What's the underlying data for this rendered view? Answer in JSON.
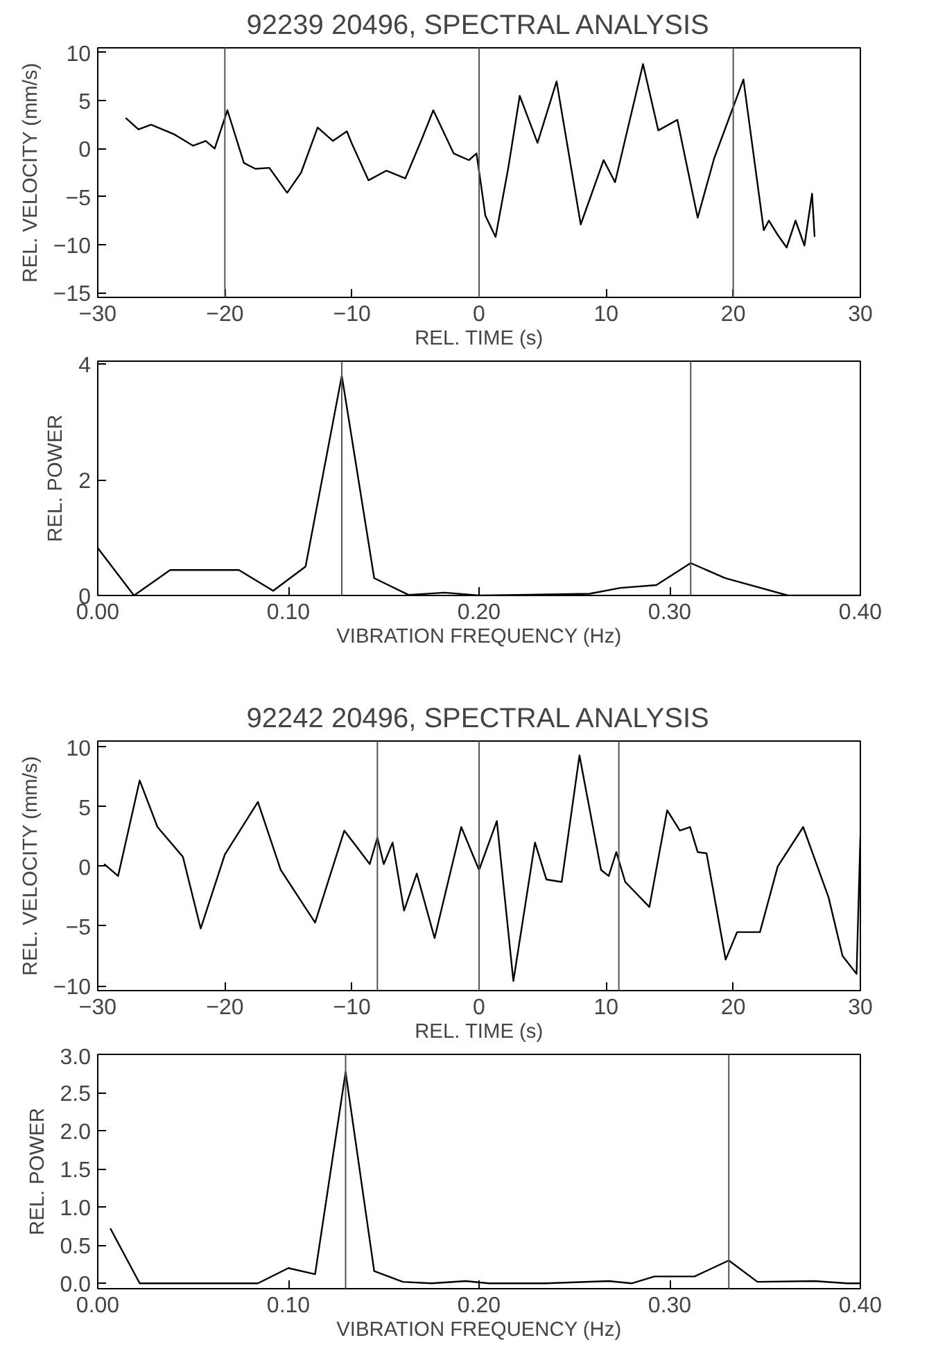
{
  "chart_data": [
    {
      "type": "line",
      "title": "92239 20496, SPECTRAL ANALYSIS",
      "xlabel": "REL. TIME (s)",
      "ylabel": "REL. VELOCITY (mm/s)",
      "grid": false,
      "xlim": [
        -30,
        30
      ],
      "ylim": [
        -15.5,
        10.5
      ],
      "xticks": [
        -30,
        -20,
        -10,
        0,
        10,
        20,
        30
      ],
      "yticks": [
        -15,
        -10,
        -5,
        0,
        5,
        10
      ],
      "ref_lines": [
        {
          "axis": "x",
          "value": -20
        },
        {
          "axis": "x",
          "value": 0
        },
        {
          "axis": "x",
          "value": 20
        }
      ],
      "series": [
        {
          "color": "#000000",
          "x": [
            -27.8,
            -26.8,
            -25.8,
            -24,
            -22.5,
            -21.5,
            -20.8,
            -19.8,
            -18.5,
            -17.6,
            -16.5,
            -15.1,
            -14,
            -12.7,
            -11.5,
            -10.4,
            -10,
            -8.7,
            -7.3,
            -5.8,
            -4.5,
            -3.6,
            -2,
            -0.8,
            -0.2,
            0.5,
            1.3,
            2.3,
            3.2,
            4.6,
            6.1,
            8,
            9.8,
            10.7,
            12.9,
            14.1,
            15.6,
            17.2,
            18.5,
            20.8,
            22.4,
            22.8,
            23.5,
            24.2,
            24.9,
            25.6,
            26.2,
            26.4
          ],
          "values": [
            3.2,
            2,
            2.5,
            1.5,
            0.3,
            0.8,
            0,
            4,
            -1.5,
            -2.1,
            -2,
            -4.6,
            -2.5,
            2.2,
            0.8,
            1.8,
            0.5,
            -3.3,
            -2.3,
            -3.1,
            1,
            4,
            -0.5,
            -1.2,
            -0.5,
            -7,
            -9.2,
            -2,
            5.5,
            0.6,
            7,
            -7.9,
            -1.2,
            -3.5,
            8.8,
            1.9,
            3,
            -7.2,
            -1,
            7.2,
            -8.5,
            -7.5,
            -9,
            -10.3,
            -7.5,
            -10.1,
            -4.7,
            -9.2
          ]
        }
      ]
    },
    {
      "type": "line",
      "xlabel": "VIBRATION FREQUENCY (Hz)",
      "ylabel": "REL. POWER",
      "grid": false,
      "xlim": [
        0,
        0.4
      ],
      "ylim": [
        0,
        4.05
      ],
      "xticks": [
        {
          "value": 0,
          "label": "0.00"
        },
        {
          "value": 0.1,
          "label": "0.10"
        },
        {
          "value": 0.2,
          "label": "0.20"
        },
        {
          "value": 0.3,
          "label": "0.30"
        },
        {
          "value": 0.4,
          "label": "0.40"
        }
      ],
      "yticks": [
        0,
        2,
        4
      ],
      "ref_lines": [
        {
          "axis": "x",
          "value": 0.128
        },
        {
          "axis": "x",
          "value": 0.311
        }
      ],
      "series": [
        {
          "color": "#000000",
          "x": [
            0,
            0.019,
            0.038,
            0.074,
            0.092,
            0.109,
            0.128,
            0.145,
            0.163,
            0.182,
            0.2,
            0.258,
            0.274,
            0.293,
            0.311,
            0.329,
            0.362,
            0.4
          ],
          "values": [
            0.82,
            0,
            0.44,
            0.44,
            0.08,
            0.5,
            3.8,
            0.3,
            0.01,
            0.05,
            0,
            0.03,
            0.13,
            0.18,
            0.56,
            0.3,
            0,
            0
          ]
        }
      ]
    },
    {
      "type": "line",
      "title": "92242 20496, SPECTRAL ANALYSIS",
      "xlabel": "REL. TIME (s)",
      "ylabel": "REL. VELOCITY (mm/s)",
      "grid": false,
      "xlim": [
        -30,
        30
      ],
      "ylim": [
        -10.4,
        10.5
      ],
      "xticks": [
        -30,
        -20,
        -10,
        0,
        10,
        20,
        30
      ],
      "yticks": [
        -10,
        -5,
        0,
        5,
        10
      ],
      "ref_lines": [
        {
          "axis": "x",
          "value": -8
        },
        {
          "axis": "x",
          "value": 0
        },
        {
          "axis": "x",
          "value": 11
        }
      ],
      "series": [
        {
          "color": "#000000",
          "x": [
            -29.5,
            -28.4,
            -26.7,
            -25.3,
            -23.3,
            -21.9,
            -20,
            -17.4,
            -15.6,
            -12.9,
            -10.6,
            -8.6,
            -8,
            -7.5,
            -6.8,
            -5.9,
            -4.9,
            -3.5,
            -1.4,
            0,
            1.4,
            2.7,
            4.4,
            5.3,
            6.5,
            7.9,
            9.6,
            10.2,
            10.8,
            11.5,
            13.4,
            14.8,
            15.8,
            16.6,
            17.2,
            17.9,
            19.4,
            20.3,
            22.1,
            23.5,
            25.5,
            27.5,
            28.6,
            29.7,
            30
          ],
          "values": [
            0.2,
            -0.8,
            7.2,
            3.3,
            0.8,
            -5.2,
            1,
            5.4,
            -0.3,
            -4.7,
            3,
            0.2,
            2.4,
            0.2,
            2,
            -3.7,
            -0.6,
            -6,
            3.3,
            -0.3,
            3.8,
            -9.6,
            2,
            -1.1,
            -1.3,
            9.3,
            -0.3,
            -0.8,
            1.2,
            -1.3,
            -3.4,
            4.7,
            3,
            3.3,
            1.2,
            1.1,
            -7.8,
            -5.5,
            -5.5,
            0,
            3.3,
            -2.6,
            -7.5,
            -9,
            2.5
          ]
        }
      ]
    },
    {
      "type": "line",
      "xlabel": "VIBRATION FREQUENCY (Hz)",
      "ylabel": "REL. POWER",
      "grid": false,
      "xlim": [
        0,
        0.4
      ],
      "ylim": [
        -0.07,
        3.0
      ],
      "xticks": [
        {
          "value": 0,
          "label": "0.00"
        },
        {
          "value": 0.1,
          "label": "0.10"
        },
        {
          "value": 0.2,
          "label": "0.20"
        },
        {
          "value": 0.3,
          "label": "0.30"
        },
        {
          "value": 0.4,
          "label": "0.40"
        }
      ],
      "yticks": [
        {
          "value": 0,
          "label": "0.0"
        },
        {
          "value": 0.5,
          "label": "0.5"
        },
        {
          "value": 1,
          "label": "1.0"
        },
        {
          "value": 1.5,
          "label": "1.5"
        },
        {
          "value": 2,
          "label": "2.0"
        },
        {
          "value": 2.5,
          "label": "2.5"
        },
        {
          "value": 3,
          "label": "3.0"
        }
      ],
      "ref_lines": [
        {
          "axis": "x",
          "value": 0.13
        },
        {
          "axis": "x",
          "value": 0.331
        }
      ],
      "series": [
        {
          "color": "#000000",
          "x": [
            0.0066,
            0.022,
            0.033,
            0.084,
            0.1,
            0.114,
            0.13,
            0.145,
            0.16,
            0.175,
            0.193,
            0.205,
            0.235,
            0.268,
            0.28,
            0.292,
            0.313,
            0.331,
            0.346,
            0.376,
            0.393,
            0.4
          ],
          "values": [
            0.72,
            0,
            0,
            0,
            0.2,
            0.12,
            2.77,
            0.16,
            0.02,
            0,
            0.03,
            0,
            0,
            0.03,
            0,
            0.09,
            0.09,
            0.3,
            0.02,
            0.03,
            0,
            0
          ]
        }
      ]
    }
  ]
}
